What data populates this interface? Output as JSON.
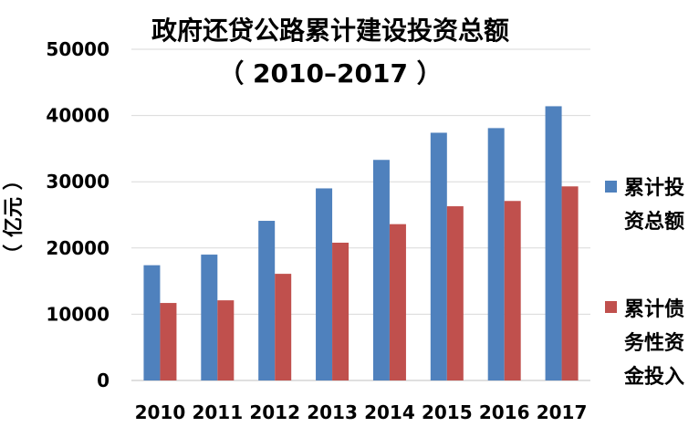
{
  "chart_data": {
    "type": "bar",
    "title": "政府还贷公路累计建设投资总额",
    "subtitle": "（ 2010–2017 ）",
    "ylabel": "（ 亿元 ）",
    "xlabel": "",
    "categories": [
      "2010",
      "2011",
      "2012",
      "2013",
      "2014",
      "2015",
      "2016",
      "2017"
    ],
    "ylim": [
      0,
      50000
    ],
    "yticks": [
      "0",
      "10000",
      "20000",
      "30000",
      "40000",
      "50000"
    ],
    "grid": true,
    "legend_position": "right",
    "series": [
      {
        "name": "累计投资总额",
        "legend_lines": [
          "累计投",
          "资总额"
        ],
        "color": "#4F81BD",
        "values": [
          17400,
          19000,
          24100,
          29000,
          33300,
          37400,
          38100,
          41400
        ]
      },
      {
        "name": "累计债务性资金投入",
        "legend_lines": [
          "累计债",
          "务性资",
          "金投入"
        ],
        "color": "#C0504D",
        "values": [
          11700,
          12100,
          16100,
          20800,
          23600,
          26300,
          27100,
          29300
        ]
      }
    ]
  }
}
